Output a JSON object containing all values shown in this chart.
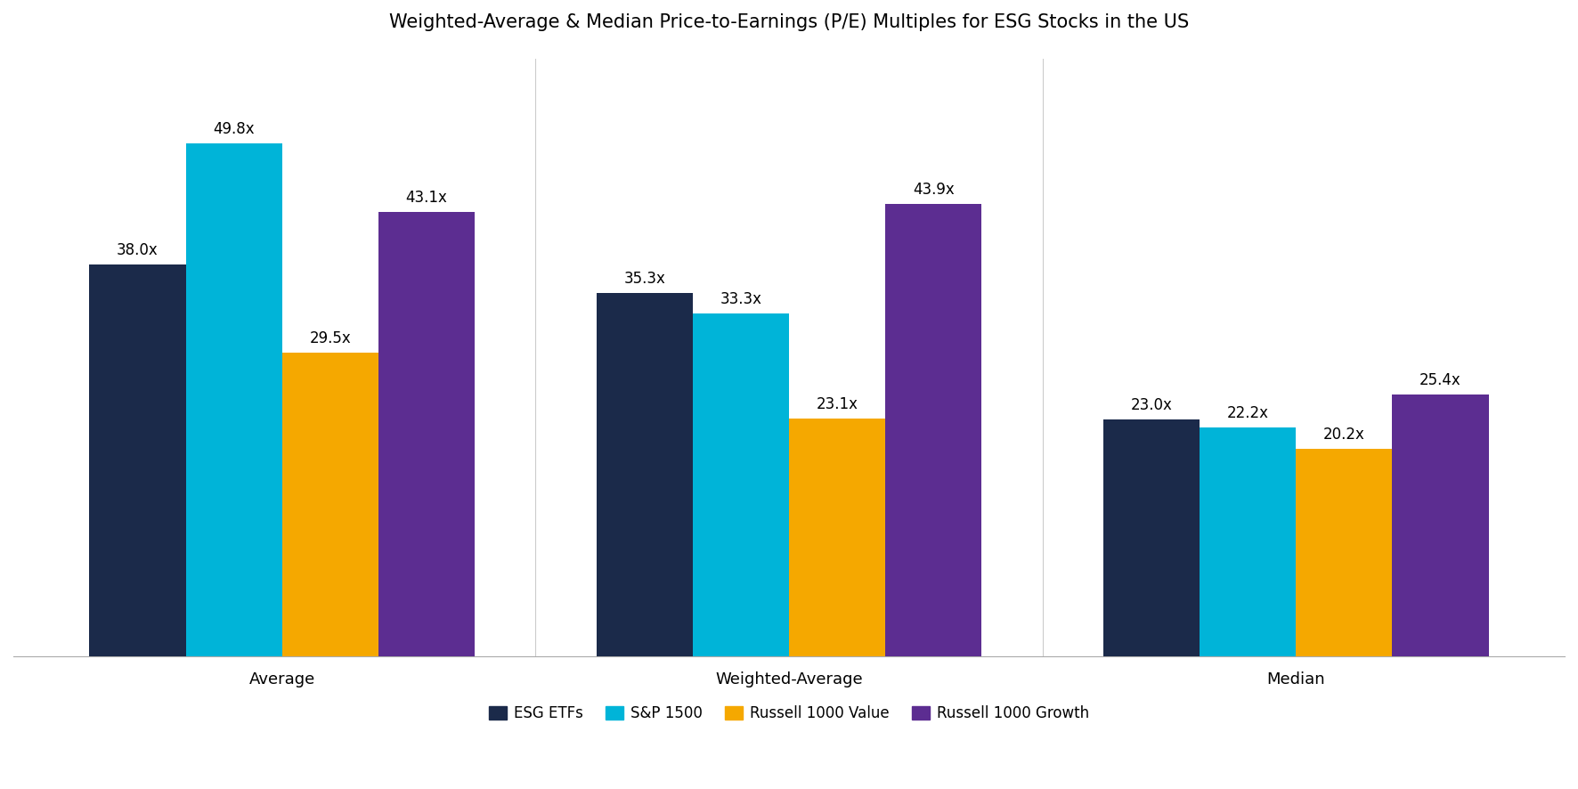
{
  "title": "Weighted-Average & Median Price-to-Earnings (P/E) Multiples for ESG Stocks in the US",
  "groups": [
    "Average",
    "Weighted-Average",
    "Median"
  ],
  "series": [
    "ESG ETFs",
    "S&P 1500",
    "Russell 1000 Value",
    "Russell 1000 Growth"
  ],
  "colors": [
    "#1b2a4a",
    "#00b4d8",
    "#f5a800",
    "#5c2d91"
  ],
  "values": [
    [
      38.0,
      49.8,
      29.5,
      43.1
    ],
    [
      35.3,
      33.3,
      23.1,
      43.9
    ],
    [
      23.0,
      22.2,
      20.2,
      25.4
    ]
  ],
  "ylim": [
    0,
    58
  ],
  "bar_width": 0.19,
  "background_color": "#ffffff",
  "title_fontsize": 15,
  "label_fontsize": 12,
  "tick_fontsize": 13,
  "legend_fontsize": 12
}
